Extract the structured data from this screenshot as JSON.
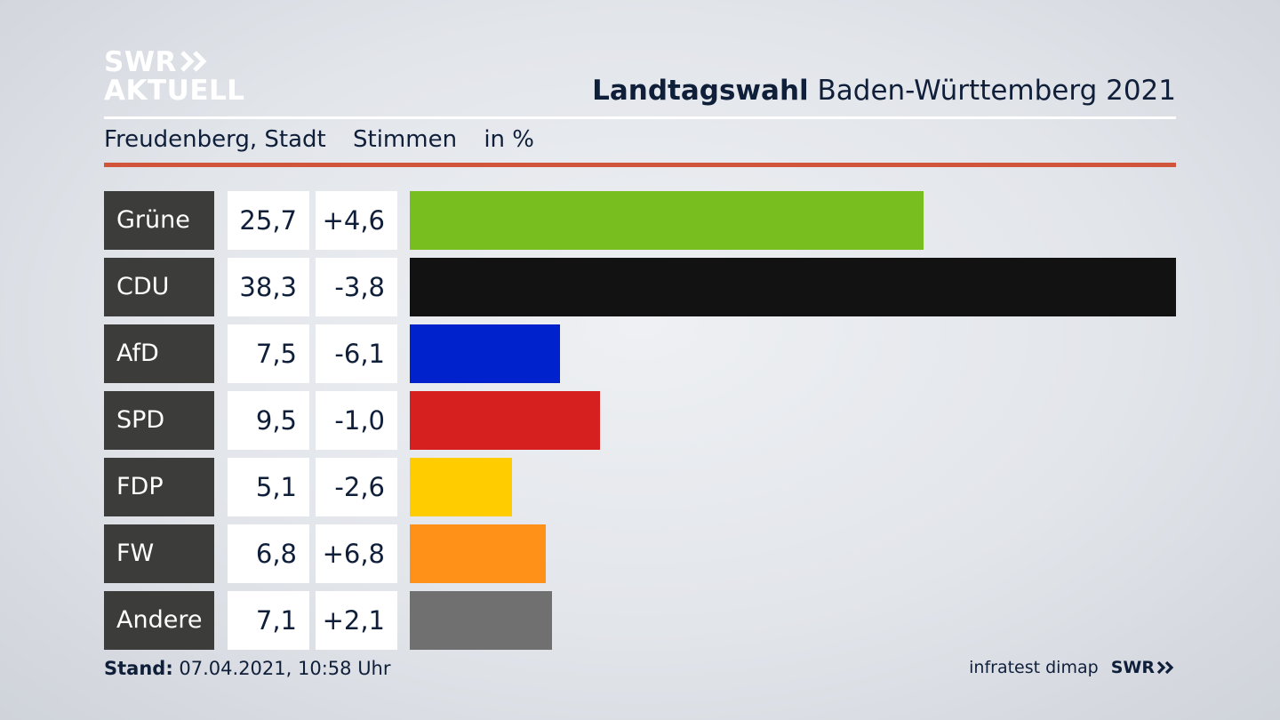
{
  "header": {
    "logo_line1": "SWR",
    "logo_line2": "AKTUELL",
    "title_bold": "Landtagswahl",
    "title_rest": "Baden-Württemberg 2021",
    "subtitle_place": "Freudenberg, Stadt",
    "subtitle_metric": "Stimmen",
    "subtitle_unit": "in %"
  },
  "chart_data": {
    "type": "bar",
    "orientation": "horizontal",
    "categories": [
      "Grüne",
      "CDU",
      "AfD",
      "SPD",
      "FDP",
      "FW",
      "Andere"
    ],
    "values": [
      25.7,
      38.3,
      7.5,
      9.5,
      5.1,
      6.8,
      7.1
    ],
    "value_labels": [
      "25,7",
      "38,3",
      "7,5",
      "9,5",
      "5,1",
      "6,8",
      "7,1"
    ],
    "change_labels": [
      "+4,6",
      "-3,8",
      "-6,1",
      "-1,0",
      "-2,6",
      "+6,8",
      "+2,1"
    ],
    "colors": [
      "#78be1e",
      "#121212",
      "#0022cc",
      "#d62020",
      "#ffcc00",
      "#ff9018",
      "#707070"
    ],
    "xlim": [
      0,
      38.3
    ]
  },
  "footer": {
    "stand_label": "Stand:",
    "stand_value": "07.04.2021, 10:58 Uhr",
    "source": "infratest dimap",
    "brand": "SWR"
  },
  "colors": {
    "accent_rule": "#d1553a",
    "party_label_bg": "#3c3c3b",
    "text": "#0f1f3a"
  }
}
